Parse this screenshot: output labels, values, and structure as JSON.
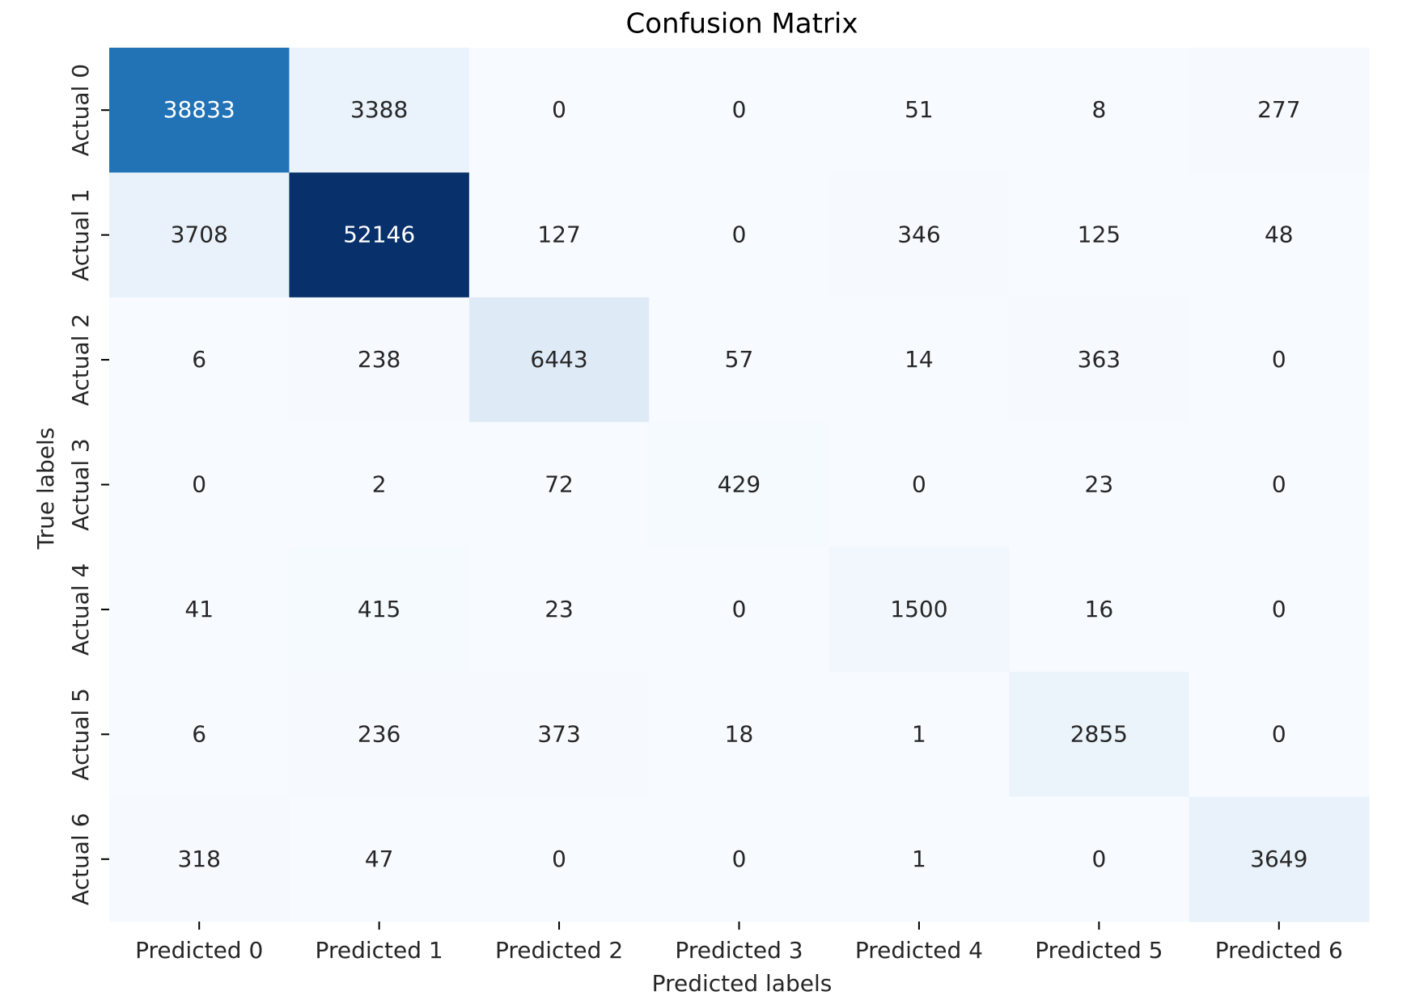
{
  "chart_data": {
    "type": "heatmap",
    "title": "Confusion Matrix",
    "xlabel": "Predicted labels",
    "ylabel": "True labels",
    "x_categories": [
      "Predicted 0",
      "Predicted 1",
      "Predicted 2",
      "Predicted 3",
      "Predicted 4",
      "Predicted 5",
      "Predicted 6"
    ],
    "y_categories": [
      "Actual 0",
      "Actual 1",
      "Actual 2",
      "Actual 3",
      "Actual 4",
      "Actual 5",
      "Actual 6"
    ],
    "values": [
      [
        38833,
        3388,
        0,
        0,
        51,
        8,
        277
      ],
      [
        3708,
        52146,
        127,
        0,
        346,
        125,
        48
      ],
      [
        6,
        238,
        6443,
        57,
        14,
        363,
        0
      ],
      [
        0,
        2,
        72,
        429,
        0,
        23,
        0
      ],
      [
        41,
        415,
        23,
        0,
        1500,
        16,
        0
      ],
      [
        6,
        236,
        373,
        18,
        1,
        2855,
        0
      ],
      [
        318,
        47,
        0,
        0,
        1,
        0,
        3649
      ]
    ],
    "colormap": "Blues",
    "colorbar": false,
    "annotated": true
  },
  "colors": {
    "text_dark": "#262626",
    "text_light": "#ffffff",
    "axis": "#000000"
  }
}
